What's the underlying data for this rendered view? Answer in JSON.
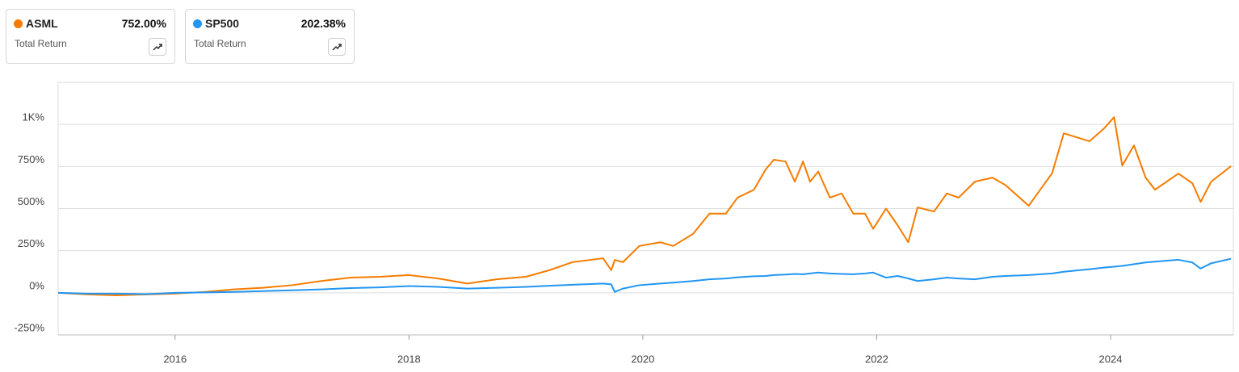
{
  "chart_data": {
    "type": "line",
    "x": [
      2015,
      2015.25,
      2015.5,
      2015.75,
      2016,
      2016.25,
      2016.5,
      2016.75,
      2017,
      2017.25,
      2017.5,
      2017.75,
      2018,
      2018.25,
      2018.5,
      2018.75,
      2019,
      2019.2,
      2019.4,
      2019.66,
      2019.73,
      2019.76,
      2019.83,
      2019.97,
      2020.15,
      2020.26,
      2020.43,
      2020.57,
      2020.71,
      2020.81,
      2020.95,
      2021.05,
      2021.12,
      2021.22,
      2021.3,
      2021.37,
      2021.43,
      2021.5,
      2021.6,
      2021.7,
      2021.8,
      2021.9,
      2021.97,
      2022.08,
      2022.18,
      2022.27,
      2022.35,
      2022.49,
      2022.6,
      2022.7,
      2022.84,
      2022.99,
      2023.1,
      2023.3,
      2023.5,
      2023.6,
      2023.82,
      2023.95,
      2024.03,
      2024.1,
      2024.2,
      2024.3,
      2024.38,
      2024.58,
      2024.7,
      2024.77,
      2024.86,
      2025.03
    ],
    "series": [
      {
        "name": "ASML",
        "color": "#f57c00",
        "metric": "Total Return",
        "total_return": {
          "value": 752,
          "label": "752.00%"
        },
        "values": [
          0,
          -10,
          -15,
          -10,
          -5,
          5,
          20,
          30,
          45,
          70,
          90,
          95,
          105,
          85,
          55,
          80,
          95,
          134,
          182,
          205,
          134,
          195,
          182,
          278,
          300,
          278,
          350,
          470,
          470,
          565,
          612,
          732,
          790,
          780,
          660,
          780,
          660,
          720,
          565,
          590,
          470,
          470,
          380,
          500,
          400,
          300,
          507,
          483,
          590,
          565,
          660,
          684,
          640,
          517,
          710,
          947,
          900,
          980,
          1043,
          756,
          875,
          684,
          612,
          708,
          650,
          540,
          660,
          752
        ]
      },
      {
        "name": "SP500",
        "color": "#2196f3",
        "metric": "Total Return",
        "total_return": {
          "value": 202.38,
          "label": "202.38%"
        },
        "values": [
          0,
          -5,
          -5,
          -8,
          0,
          2,
          5,
          10,
          15,
          20,
          28,
          32,
          40,
          35,
          25,
          30,
          35,
          42,
          48,
          55,
          50,
          5,
          25,
          45,
          55,
          60,
          70,
          80,
          85,
          92,
          98,
          100,
          105,
          108,
          112,
          110,
          115,
          120,
          115,
          112,
          110,
          115,
          120,
          90,
          100,
          85,
          70,
          80,
          90,
          85,
          80,
          95,
          100,
          105,
          115,
          125,
          140,
          150,
          155,
          160,
          170,
          180,
          185,
          196,
          180,
          144,
          175,
          202.38
        ]
      }
    ],
    "xlim": [
      2015,
      2025.05
    ],
    "xticks": [
      2016,
      2018,
      2020,
      2022,
      2024
    ],
    "ylim": [
      -250,
      1250
    ],
    "yticks": [
      {
        "value": -250,
        "label": "-250%"
      },
      {
        "value": 0,
        "label": "0%"
      },
      {
        "value": 250,
        "label": "250%"
      },
      {
        "value": 500,
        "label": "500%"
      },
      {
        "value": 750,
        "label": "750%"
      },
      {
        "value": 1000,
        "label": "1K%"
      }
    ],
    "grid": true
  }
}
